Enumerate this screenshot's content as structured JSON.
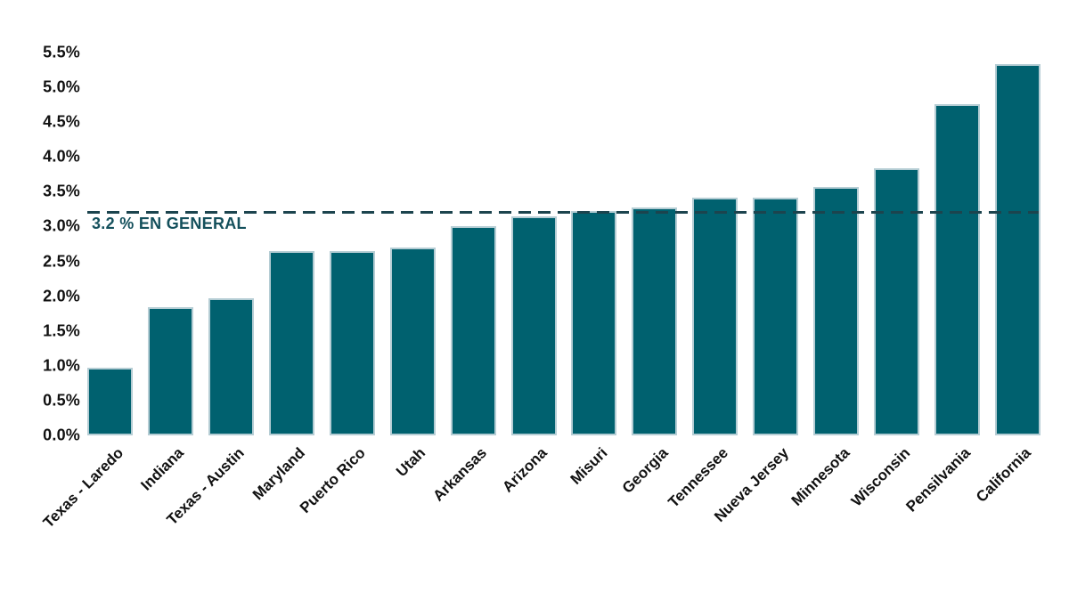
{
  "chart_data": {
    "type": "bar",
    "title": "",
    "xlabel": "",
    "ylabel": "",
    "unit": "%",
    "categories": [
      "Texas - Laredo",
      "Indiana",
      "Texas - Austin",
      "Maryland",
      "Puerto Rico",
      "Utah",
      "Arkansas",
      "Arizona",
      "Misuri",
      "Georgia",
      "Tennessee",
      "Nueva Jersey",
      "Minnesota",
      "Wisconsin",
      "Pensilvania",
      "California"
    ],
    "values": [
      0.97,
      1.84,
      1.97,
      2.65,
      2.65,
      2.7,
      3.0,
      3.15,
      3.22,
      3.28,
      3.41,
      3.41,
      3.57,
      3.84,
      4.76,
      5.33
    ],
    "ylim": [
      0,
      5.5
    ],
    "ytick_step": 0.5,
    "ytick_labels": [
      "0.0%",
      "0.5%",
      "1.0%",
      "1.5%",
      "2.0%",
      "2.5%",
      "3.0%",
      "3.5%",
      "4.0%",
      "4.5%",
      "5.0%",
      "5.5%"
    ],
    "ref_line": {
      "value": 3.2,
      "label": "3.2 % EN GENERAL",
      "style": "dashed"
    },
    "grid": false,
    "legend": null,
    "colors": {
      "bar_fill": "#00616f",
      "bar_border": "#b5cdd4",
      "ref_line": "#1c444e",
      "ref_label": "#14505c",
      "axis_text": "#111111",
      "background": "#ffffff"
    }
  }
}
